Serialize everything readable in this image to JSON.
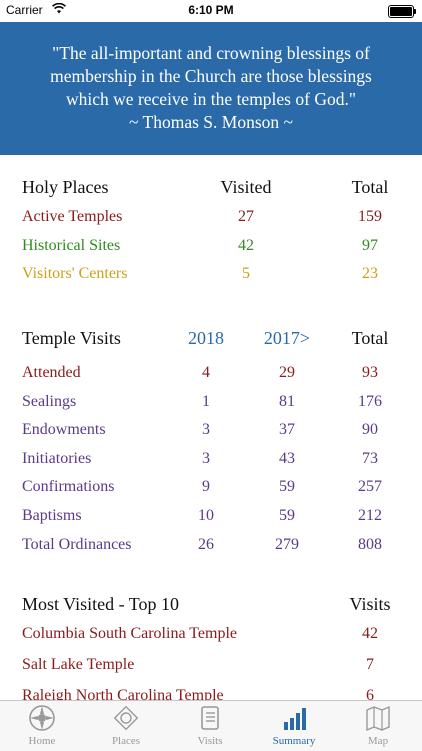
{
  "status_bar": {
    "carrier": "Carrier",
    "time": "6:10 PM"
  },
  "quote": {
    "lines": [
      "\"The all-important and crowning blessings of",
      "membership in the Church are those blessings",
      "which we receive in the temples of God.\"",
      "~ Thomas S. Monson ~"
    ]
  },
  "holy_places": {
    "header": {
      "label": "Holy Places",
      "visited": "Visited",
      "total": "Total"
    },
    "rows": [
      {
        "label": "Active Temples",
        "visited": "27",
        "total": "159",
        "color": "#8b1a1a"
      },
      {
        "label": "Historical Sites",
        "visited": "42",
        "total": "97",
        "color": "#2e8b1f"
      },
      {
        "label": "Visitors' Centers",
        "visited": "5",
        "total": "23",
        "color": "#c9a21a"
      }
    ]
  },
  "temple_visits": {
    "header": {
      "label": "Temple Visits",
      "col1": "2018",
      "col2": "2017>",
      "total": "Total"
    },
    "rows": [
      {
        "label": "Attended",
        "v1": "4",
        "v2": "29",
        "total": "93",
        "color": "#8b1a1a"
      },
      {
        "label": "Sealings",
        "v1": "1",
        "v2": "81",
        "total": "176",
        "color": "#5b3a8a"
      },
      {
        "label": "Endowments",
        "v1": "3",
        "v2": "37",
        "total": "90",
        "color": "#5b3a8a"
      },
      {
        "label": "Initiatories",
        "v1": "3",
        "v2": "43",
        "total": "73",
        "color": "#5b3a8a"
      },
      {
        "label": "Confirmations",
        "v1": "9",
        "v2": "59",
        "total": "257",
        "color": "#5b3a8a"
      },
      {
        "label": "Baptisms",
        "v1": "10",
        "v2": "59",
        "total": "212",
        "color": "#5b3a8a"
      },
      {
        "label": "Total Ordinances",
        "v1": "26",
        "v2": "279",
        "total": "808",
        "color": "#5b3a8a"
      }
    ]
  },
  "most_visited": {
    "header": {
      "label": "Most Visited - Top 10",
      "visits": "Visits"
    },
    "rows": [
      {
        "label": "Columbia South Carolina Temple",
        "visits": "42",
        "color": "#8b1a1a"
      },
      {
        "label": "Salt Lake Temple",
        "visits": "7",
        "color": "#8b1a1a"
      },
      {
        "label": "Raleigh North Carolina Temple",
        "visits": "6",
        "color": "#8b1a1a"
      }
    ]
  },
  "tabs": [
    {
      "label": "Home",
      "icon": "home-icon"
    },
    {
      "label": "Places",
      "icon": "places-icon"
    },
    {
      "label": "Visits",
      "icon": "visits-icon"
    },
    {
      "label": "Summary",
      "icon": "summary-icon",
      "active": true
    },
    {
      "label": "Map",
      "icon": "map-icon"
    }
  ],
  "colors": {
    "accent": "#2a6aa8",
    "inactive_tab": "#999999"
  }
}
